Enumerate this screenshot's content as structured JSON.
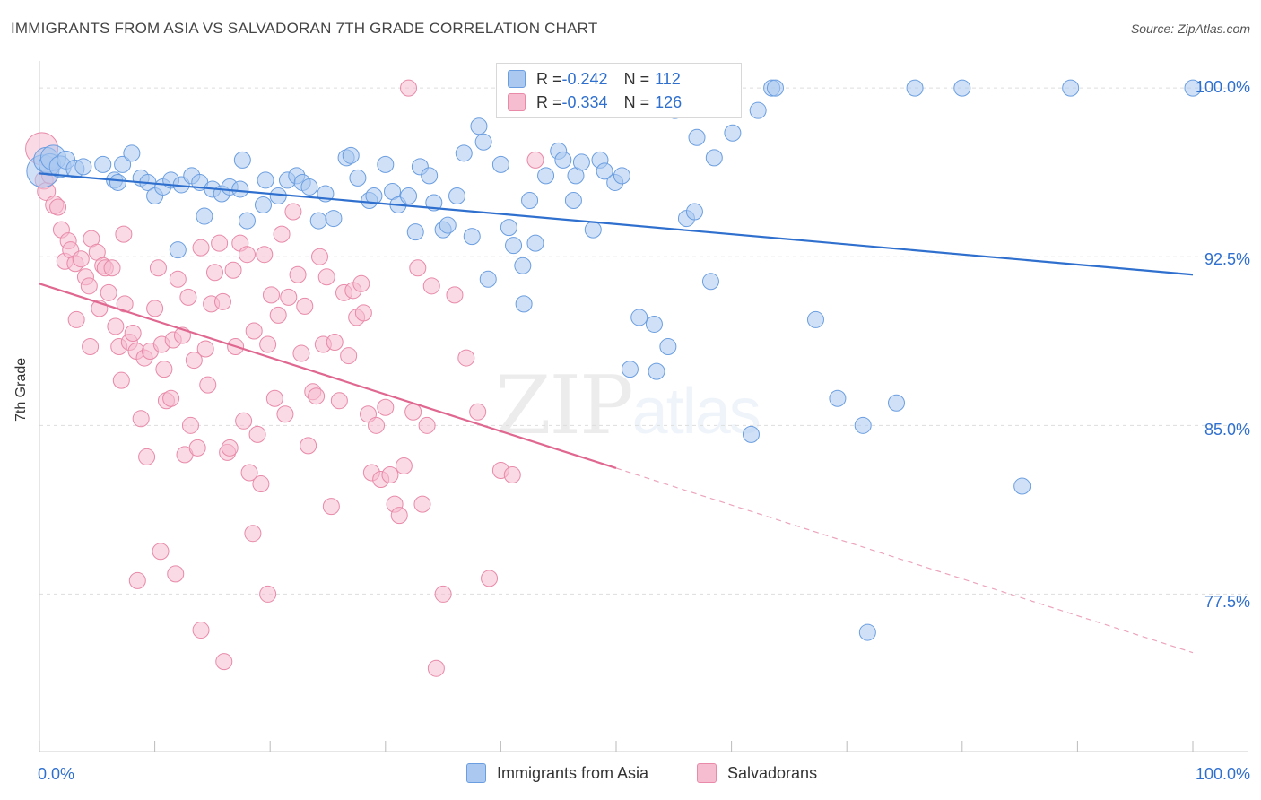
{
  "title": "IMMIGRANTS FROM ASIA VS SALVADORAN 7TH GRADE CORRELATION CHART",
  "source": "Source: ZipAtlas.com",
  "watermark": {
    "a": "ZIP",
    "b": "atlas"
  },
  "colors": {
    "blue_fill": "#aac8f0",
    "blue_stroke": "#6b9ee0",
    "blue_line": "#2f6fce",
    "pink_fill": "#f6bccf",
    "pink_stroke": "#e88aa8",
    "pink_line": "#e06890",
    "grid": "#dddddd",
    "axis_text": "#2f6fce"
  },
  "stats": [
    {
      "r_label": "R = ",
      "r": "-0.242",
      "n_label": "N = ",
      "n": "112"
    },
    {
      "r_label": "R = ",
      "r": "-0.334",
      "n_label": "N = ",
      "n": "126"
    }
  ],
  "legend": [
    "Immigrants from Asia",
    "Salvadorans"
  ],
  "axis": {
    "x_min_label": "0.0%",
    "x_max_label": "100.0%",
    "y_ticks": [
      "100.0%",
      "92.5%",
      "85.0%",
      "77.5%"
    ],
    "ylabel": "7th Grade"
  },
  "chart_data": {
    "type": "scatter",
    "xlim": [
      0,
      100
    ],
    "ylim": [
      70.5,
      101.2
    ],
    "y_ticks": [
      100.0,
      92.5,
      85.0,
      77.5
    ],
    "grid": true,
    "legend_position": "bottom-center",
    "series": [
      {
        "name": "Immigrants from Asia",
        "trend": {
          "x0": 0,
          "y0": 96.2,
          "x1": 100,
          "y1": 91.7,
          "dashed_from": null
        },
        "points": [
          [
            0.3,
            96.3,
            18
          ],
          [
            0.6,
            96.8,
            14
          ],
          [
            0.9,
            96.6,
            12
          ],
          [
            1.2,
            96.9,
            14
          ],
          [
            1.8,
            96.5,
            12
          ],
          [
            2.3,
            96.8,
            10
          ],
          [
            3.1,
            96.4,
            10
          ],
          [
            3.8,
            96.5,
            9
          ],
          [
            5.5,
            96.6,
            9
          ],
          [
            6.5,
            95.9,
            9
          ],
          [
            6.8,
            95.8,
            9
          ],
          [
            7.2,
            96.6,
            9
          ],
          [
            8.0,
            97.1,
            9
          ],
          [
            8.8,
            96.0,
            9
          ],
          [
            9.4,
            95.8,
            9
          ],
          [
            10.0,
            95.2,
            9
          ],
          [
            10.7,
            95.6,
            9
          ],
          [
            11.4,
            95.9,
            9
          ],
          [
            12.0,
            92.8,
            9
          ],
          [
            12.3,
            95.7,
            9
          ],
          [
            13.2,
            96.1,
            9
          ],
          [
            13.9,
            95.8,
            9
          ],
          [
            14.3,
            94.3,
            9
          ],
          [
            15.0,
            95.5,
            9
          ],
          [
            15.8,
            95.3,
            9
          ],
          [
            16.5,
            95.6,
            9
          ],
          [
            17.4,
            95.5,
            9
          ],
          [
            17.6,
            96.8,
            9
          ],
          [
            18.0,
            94.1,
            9
          ],
          [
            19.4,
            94.8,
            9
          ],
          [
            19.6,
            95.9,
            9
          ],
          [
            20.7,
            95.2,
            9
          ],
          [
            21.5,
            95.9,
            9
          ],
          [
            22.3,
            96.1,
            9
          ],
          [
            22.8,
            95.8,
            9
          ],
          [
            23.4,
            95.6,
            9
          ],
          [
            24.2,
            94.1,
            9
          ],
          [
            24.8,
            95.3,
            9
          ],
          [
            25.5,
            94.2,
            9
          ],
          [
            26.6,
            96.9,
            9
          ],
          [
            27.0,
            97.0,
            9
          ],
          [
            27.6,
            96.0,
            9
          ],
          [
            28.6,
            95.0,
            9
          ],
          [
            29.0,
            95.2,
            9
          ],
          [
            30.0,
            96.6,
            9
          ],
          [
            30.6,
            95.4,
            9
          ],
          [
            31.1,
            94.8,
            9
          ],
          [
            32.0,
            95.2,
            9
          ],
          [
            32.6,
            93.6,
            9
          ],
          [
            33.0,
            96.5,
            9
          ],
          [
            33.8,
            96.1,
            9
          ],
          [
            34.2,
            94.9,
            9
          ],
          [
            35.0,
            93.7,
            9
          ],
          [
            35.4,
            93.9,
            9
          ],
          [
            36.2,
            95.2,
            9
          ],
          [
            36.8,
            97.1,
            9
          ],
          [
            37.5,
            93.4,
            9
          ],
          [
            38.1,
            98.3,
            9
          ],
          [
            38.5,
            97.6,
            9
          ],
          [
            38.9,
            91.5,
            9
          ],
          [
            40.0,
            96.6,
            9
          ],
          [
            40.7,
            93.8,
            9
          ],
          [
            41.1,
            93.0,
            9
          ],
          [
            41.9,
            92.1,
            9
          ],
          [
            42.0,
            90.4,
            9
          ],
          [
            42.5,
            95.0,
            9
          ],
          [
            43.0,
            93.1,
            9
          ],
          [
            43.9,
            96.1,
            9
          ],
          [
            45.0,
            97.2,
            9
          ],
          [
            45.4,
            96.8,
            9
          ],
          [
            46.3,
            95.0,
            9
          ],
          [
            46.5,
            96.1,
            9
          ],
          [
            47.0,
            96.7,
            9
          ],
          [
            48.0,
            93.7,
            9
          ],
          [
            48.6,
            96.8,
            9
          ],
          [
            49.0,
            96.3,
            9
          ],
          [
            49.9,
            95.8,
            9
          ],
          [
            50.5,
            96.1,
            9
          ],
          [
            51.2,
            87.5,
            9
          ],
          [
            52.0,
            89.8,
            9
          ],
          [
            53.3,
            89.5,
            9
          ],
          [
            53.5,
            87.4,
            9
          ],
          [
            54.5,
            88.5,
            9
          ],
          [
            55.1,
            99.0,
            9
          ],
          [
            56.1,
            94.2,
            9
          ],
          [
            56.8,
            94.5,
            9
          ],
          [
            57.0,
            97.8,
            9
          ],
          [
            58.2,
            91.4,
            9
          ],
          [
            58.5,
            96.9,
            9
          ],
          [
            60.1,
            98.0,
            9
          ],
          [
            61.7,
            84.6,
            9
          ],
          [
            62.3,
            99.0,
            9
          ],
          [
            63.5,
            100.0,
            9
          ],
          [
            63.8,
            100.0,
            9
          ],
          [
            67.3,
            89.7,
            9
          ],
          [
            69.2,
            86.2,
            9
          ],
          [
            71.4,
            85.0,
            9
          ],
          [
            71.8,
            75.8,
            9
          ],
          [
            74.3,
            86.0,
            9
          ],
          [
            75.9,
            100.0,
            9
          ],
          [
            80.0,
            100.0,
            9
          ],
          [
            85.2,
            82.3,
            9
          ],
          [
            89.4,
            100.0,
            9
          ],
          [
            100.0,
            100.0,
            9
          ]
        ]
      },
      {
        "name": "Salvadorans",
        "trend": {
          "x0": 0,
          "y0": 91.3,
          "x1": 100,
          "y1": 74.9,
          "dashed_from": 50.0
        },
        "points": [
          [
            0.2,
            97.3,
            18
          ],
          [
            0.4,
            95.9,
            10
          ],
          [
            0.6,
            95.4,
            10
          ],
          [
            0.9,
            96.1,
            9
          ],
          [
            1.3,
            94.8,
            10
          ],
          [
            1.6,
            94.7,
            9
          ],
          [
            1.9,
            93.7,
            9
          ],
          [
            2.2,
            92.3,
            9
          ],
          [
            2.5,
            93.2,
            9
          ],
          [
            2.7,
            92.8,
            9
          ],
          [
            3.1,
            92.2,
            9
          ],
          [
            3.2,
            89.7,
            9
          ],
          [
            3.6,
            92.4,
            9
          ],
          [
            4.0,
            91.6,
            9
          ],
          [
            4.3,
            91.2,
            9
          ],
          [
            4.4,
            88.5,
            9
          ],
          [
            4.5,
            93.3,
            9
          ],
          [
            5.0,
            92.7,
            9
          ],
          [
            5.2,
            90.2,
            9
          ],
          [
            5.5,
            92.1,
            9
          ],
          [
            5.7,
            92.0,
            9
          ],
          [
            6.0,
            90.9,
            9
          ],
          [
            6.3,
            92.0,
            9
          ],
          [
            6.6,
            89.4,
            9
          ],
          [
            6.9,
            88.5,
            9
          ],
          [
            7.1,
            87.0,
            9
          ],
          [
            7.3,
            93.5,
            9
          ],
          [
            7.4,
            90.4,
            9
          ],
          [
            7.8,
            88.7,
            9
          ],
          [
            8.1,
            89.1,
            9
          ],
          [
            8.4,
            88.3,
            9
          ],
          [
            8.8,
            85.3,
            9
          ],
          [
            9.1,
            88.0,
            9
          ],
          [
            9.3,
            83.6,
            9
          ],
          [
            9.6,
            88.3,
            9
          ],
          [
            10.0,
            90.2,
            9
          ],
          [
            10.3,
            92.0,
            9
          ],
          [
            10.6,
            88.6,
            9
          ],
          [
            10.8,
            87.5,
            9
          ],
          [
            11.0,
            86.1,
            9
          ],
          [
            11.4,
            86.2,
            9
          ],
          [
            11.6,
            88.8,
            9
          ],
          [
            12.0,
            91.5,
            9
          ],
          [
            12.4,
            89.0,
            9
          ],
          [
            12.6,
            83.7,
            9
          ],
          [
            12.9,
            90.7,
            9
          ],
          [
            13.1,
            85.0,
            9
          ],
          [
            13.4,
            87.9,
            9
          ],
          [
            13.7,
            84.0,
            9
          ],
          [
            14.0,
            92.9,
            9
          ],
          [
            14.4,
            88.4,
            9
          ],
          [
            14.6,
            86.8,
            9
          ],
          [
            14.9,
            90.4,
            9
          ],
          [
            15.2,
            91.8,
            9
          ],
          [
            15.6,
            93.1,
            9
          ],
          [
            15.9,
            90.5,
            9
          ],
          [
            16.3,
            83.8,
            9
          ],
          [
            16.5,
            84.0,
            9
          ],
          [
            16.8,
            91.9,
            9
          ],
          [
            17.0,
            88.5,
            9
          ],
          [
            17.4,
            93.1,
            9
          ],
          [
            17.7,
            85.2,
            9
          ],
          [
            18.0,
            92.6,
            9
          ],
          [
            18.2,
            82.9,
            9
          ],
          [
            18.6,
            89.2,
            9
          ],
          [
            18.9,
            84.6,
            9
          ],
          [
            19.2,
            82.4,
            9
          ],
          [
            19.5,
            92.6,
            9
          ],
          [
            19.8,
            88.6,
            9
          ],
          [
            20.1,
            90.8,
            9
          ],
          [
            20.4,
            86.2,
            9
          ],
          [
            20.7,
            89.9,
            9
          ],
          [
            21.0,
            93.5,
            9
          ],
          [
            21.3,
            85.5,
            9
          ],
          [
            21.6,
            90.7,
            9
          ],
          [
            22.0,
            94.5,
            9
          ],
          [
            22.4,
            91.7,
            9
          ],
          [
            22.7,
            88.2,
            9
          ],
          [
            23.0,
            90.3,
            9
          ],
          [
            23.3,
            84.1,
            9
          ],
          [
            23.7,
            86.5,
            9
          ],
          [
            24.0,
            86.3,
            9
          ],
          [
            24.3,
            92.5,
            9
          ],
          [
            24.6,
            88.6,
            9
          ],
          [
            24.9,
            91.6,
            9
          ],
          [
            25.3,
            81.4,
            9
          ],
          [
            25.6,
            88.7,
            9
          ],
          [
            26.0,
            86.1,
            9
          ],
          [
            26.4,
            90.9,
            9
          ],
          [
            26.8,
            88.1,
            9
          ],
          [
            27.2,
            91.0,
            9
          ],
          [
            27.5,
            89.8,
            9
          ],
          [
            27.9,
            91.3,
            9
          ],
          [
            28.1,
            90.0,
            9
          ],
          [
            28.5,
            85.5,
            9
          ],
          [
            28.8,
            82.9,
            9
          ],
          [
            29.2,
            85.0,
            9
          ],
          [
            29.6,
            82.6,
            9
          ],
          [
            30.0,
            85.8,
            9
          ],
          [
            30.4,
            82.8,
            9
          ],
          [
            30.8,
            81.5,
            9
          ],
          [
            31.2,
            81.0,
            9
          ],
          [
            31.6,
            83.2,
            9
          ],
          [
            32.0,
            100.0,
            9
          ],
          [
            32.4,
            85.6,
            9
          ],
          [
            32.8,
            92.0,
            9
          ],
          [
            33.2,
            81.5,
            9
          ],
          [
            33.6,
            85.0,
            9
          ],
          [
            34.0,
            91.2,
            9
          ],
          [
            34.4,
            74.2,
            9
          ],
          [
            35.0,
            77.5,
            9
          ],
          [
            36.0,
            90.8,
            9
          ],
          [
            37.0,
            88.0,
            9
          ],
          [
            38.0,
            85.6,
            9
          ],
          [
            39.0,
            78.2,
            9
          ],
          [
            40.0,
            83.0,
            9
          ],
          [
            41.0,
            82.8,
            9
          ],
          [
            42.0,
            100.0,
            9
          ],
          [
            43.0,
            96.8,
            9
          ],
          [
            8.5,
            78.1,
            9
          ],
          [
            10.5,
            79.4,
            9
          ],
          [
            11.8,
            78.4,
            9
          ],
          [
            14.0,
            75.9,
            9
          ],
          [
            16.0,
            74.5,
            9
          ],
          [
            18.5,
            80.2,
            9
          ],
          [
            19.8,
            77.5,
            9
          ]
        ]
      }
    ]
  }
}
